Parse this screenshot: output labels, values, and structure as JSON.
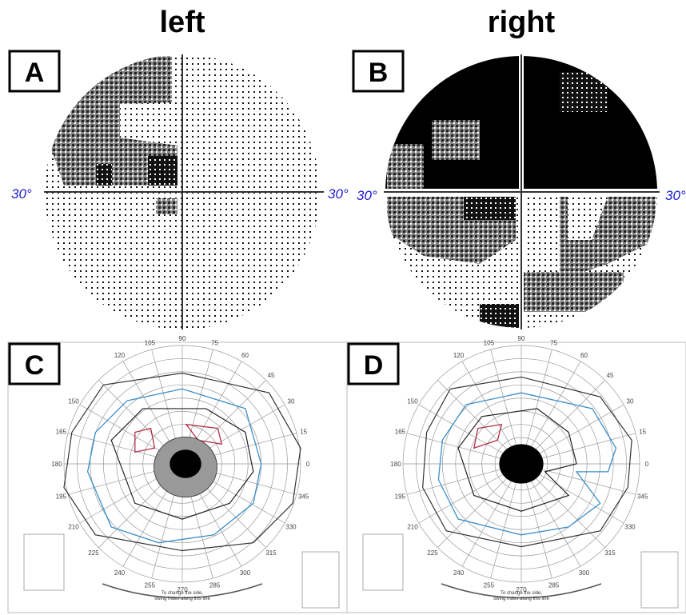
{
  "header": {
    "left": "left",
    "right": "right"
  },
  "panels": [
    {
      "label": "A",
      "axis_labels": [
        "30°",
        "30°"
      ]
    },
    {
      "label": "B",
      "axis_labels": [
        "30°",
        "30°"
      ]
    },
    {
      "label": "C"
    },
    {
      "label": "D"
    }
  ],
  "goldmann": {
    "angles": [
      "120",
      "105",
      "90",
      "75",
      "60",
      "45",
      "30",
      "15",
      "0",
      "345",
      "330",
      "315",
      "300",
      "285",
      "270",
      "255",
      "240",
      "225",
      "210",
      "195",
      "180",
      "165",
      "150"
    ],
    "note": [
      "To change the side,",
      "swing index along this line"
    ]
  }
}
